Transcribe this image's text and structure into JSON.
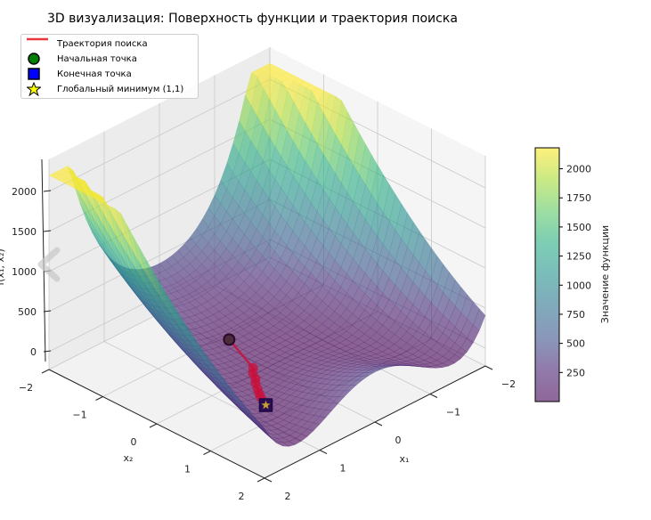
{
  "title": "3D визуализация: Поверхность функции и траектория поиска",
  "legend": {
    "items": [
      {
        "label": "Траектория поиска",
        "color": "#e8383d",
        "marker": "line"
      },
      {
        "label": "Начальная точка",
        "color": "#008000",
        "marker": "circle"
      },
      {
        "label": "Конечная точка",
        "color": "#0000ff",
        "marker": "square"
      },
      {
        "label": "Глобальный минимум (1,1)",
        "color": "#ffff00",
        "marker": "star"
      }
    ]
  },
  "chart_data": {
    "type": "surface3d",
    "title": "3D визуализация: Поверхность функции и траектория поиска",
    "xlabel": "x₁",
    "ylabel": "x₂",
    "zlabel": "f(x₁, x₂)",
    "xlim": [
      -2,
      2
    ],
    "ylim": [
      -2,
      2
    ],
    "zlim_visible": [
      0,
      2200
    ],
    "x_ticks": [
      "−2",
      "−1",
      "0",
      "1",
      "2"
    ],
    "y_ticks": [
      "−2",
      "−1",
      "0",
      "1",
      "2"
    ],
    "z_ticks": [
      "0",
      "500",
      "1000",
      "1500",
      "2000"
    ],
    "colormap": "viridis",
    "surface_alpha": 0.6,
    "colorbar": {
      "label": "Значение функции",
      "vmin": 0,
      "vmax": 2180,
      "ticks": [
        "250",
        "500",
        "750",
        "1000",
        "1250",
        "1500",
        "1750",
        "2000"
      ]
    },
    "trajectory": {
      "name": "Траектория поиска",
      "color": "#c8103c",
      "points": [
        [
          0.2,
          -0.5
        ],
        [
          0.45,
          0.2
        ],
        [
          0.55,
          0.3
        ],
        [
          0.62,
          0.42
        ],
        [
          0.7,
          0.5
        ],
        [
          0.78,
          0.62
        ],
        [
          0.85,
          0.72
        ],
        [
          0.9,
          0.8
        ],
        [
          0.95,
          0.9
        ],
        [
          1.0,
          1.0
        ]
      ]
    },
    "start_point": {
      "name": "Начальная точка",
      "x1": 0.2,
      "x2": -0.5
    },
    "end_point": {
      "name": "Конечная точка",
      "x1": 1.0,
      "x2": 1.0
    },
    "global_minimum": {
      "name": "Глобальный минимум (1,1)",
      "x1": 1,
      "x2": 1,
      "z": 0
    },
    "grid": true
  }
}
